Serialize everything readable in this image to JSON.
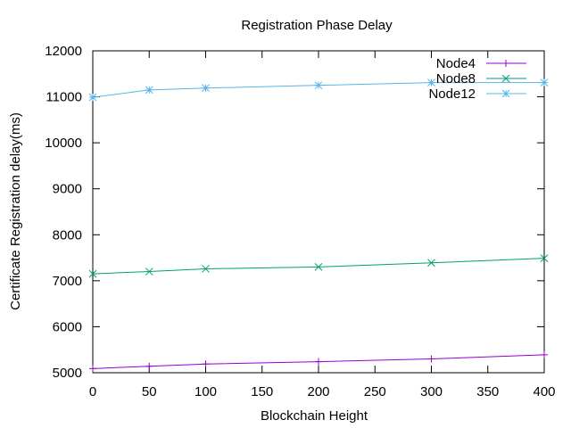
{
  "chart_data": {
    "type": "line",
    "title": "Registration Phase Delay",
    "xlabel": "Blockchain Height",
    "ylabel": "Certificate Registration delay(ms)",
    "xlim": [
      0,
      400
    ],
    "ylim": [
      5000,
      12000
    ],
    "x_ticks": [
      0,
      50,
      100,
      150,
      200,
      250,
      300,
      350,
      400
    ],
    "y_ticks": [
      5000,
      6000,
      7000,
      8000,
      9000,
      10000,
      11000,
      12000
    ],
    "grid": false,
    "legend_position": "top-right",
    "x": [
      0,
      50,
      100,
      200,
      300,
      400
    ],
    "series": [
      {
        "name": "Node4",
        "color": "#9400d3",
        "marker": "plus",
        "values": [
          5090,
          5140,
          5190,
          5240,
          5300,
          5390
        ]
      },
      {
        "name": "Node8",
        "color": "#009e73",
        "marker": "cross",
        "values": [
          7150,
          7200,
          7260,
          7300,
          7390,
          7490
        ]
      },
      {
        "name": "Node12",
        "color": "#56b4e9",
        "marker": "star",
        "values": [
          10990,
          11150,
          11190,
          11250,
          11310,
          11310
        ]
      }
    ]
  }
}
